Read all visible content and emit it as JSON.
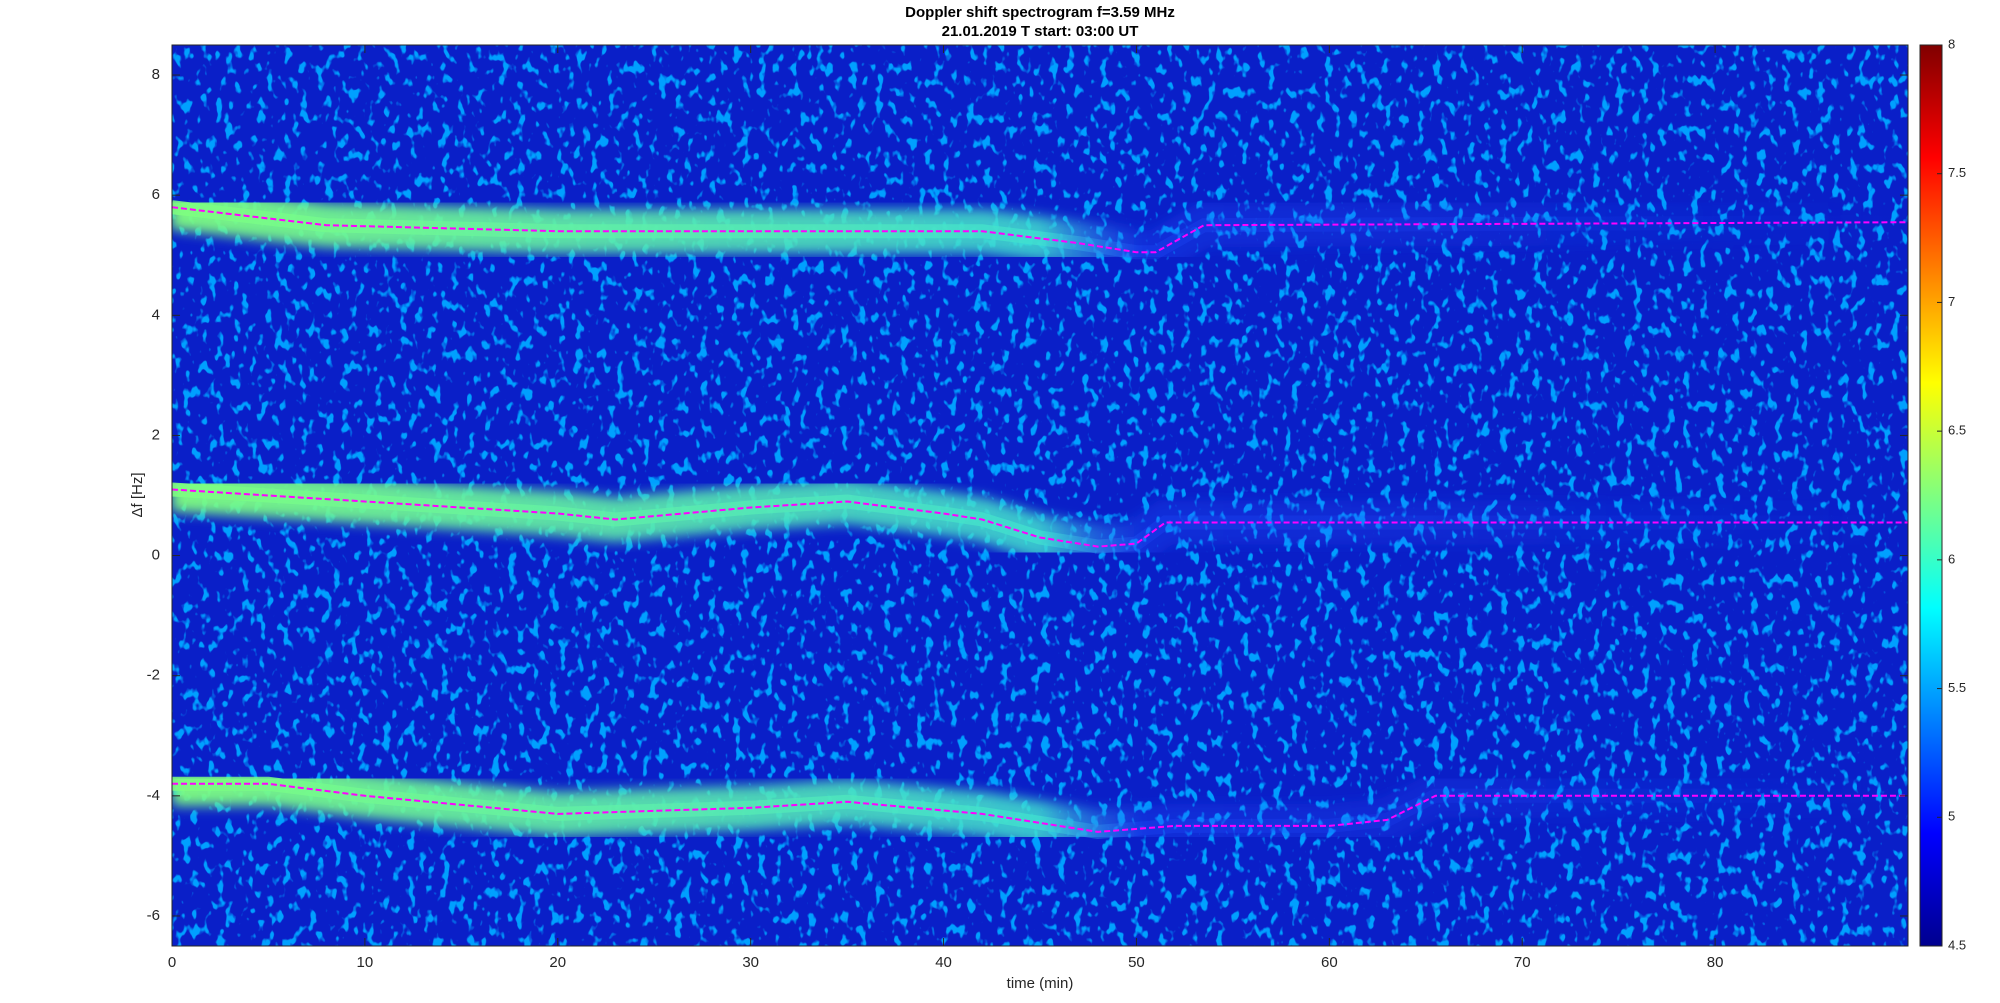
{
  "chart_data": {
    "type": "spectrogram",
    "title": "Doppler shift spectrogram f=3.59 MHz",
    "subtitle": "21.01.2019   T start: 03:00 UT",
    "x_label": "time (min)",
    "y_label": "Δf [Hz]",
    "xlim": [
      0,
      90
    ],
    "xticks": [
      0,
      10,
      20,
      30,
      40,
      50,
      60,
      70,
      80
    ],
    "ylim": [
      -6.5,
      8.5
    ],
    "yticks": [
      -6,
      -4,
      -2,
      0,
      2,
      4,
      6,
      8
    ],
    "clim": [
      4.5,
      8
    ],
    "cticks": [
      4.5,
      5,
      5.5,
      6,
      6.5,
      7,
      7.5,
      8
    ],
    "colormap": "jet",
    "series": [
      {
        "color": "#ff00ff",
        "x": [
          0,
          8,
          20,
          30,
          42,
          47,
          50,
          51,
          53.5,
          90
        ],
        "values": [
          5.8,
          5.5,
          5.4,
          5.4,
          5.4,
          5.2,
          5.05,
          5.05,
          5.5,
          5.55
        ]
      },
      {
        "color": "#ff00ff",
        "x": [
          0,
          10,
          20,
          23,
          30,
          35,
          40,
          42,
          45,
          48,
          50,
          51.5,
          90
        ],
        "values": [
          1.1,
          0.9,
          0.7,
          0.6,
          0.8,
          0.9,
          0.7,
          0.6,
          0.3,
          0.15,
          0.2,
          0.55,
          0.55
        ]
      },
      {
        "color": "#ff00ff",
        "x": [
          0,
          5,
          10,
          20,
          30,
          35,
          42,
          48,
          52,
          60,
          63,
          65.5,
          90
        ],
        "values": [
          -3.8,
          -3.8,
          -4.0,
          -4.3,
          -4.2,
          -4.1,
          -4.3,
          -4.6,
          -4.5,
          -4.5,
          -4.4,
          -4.0,
          -4.0
        ]
      }
    ]
  }
}
